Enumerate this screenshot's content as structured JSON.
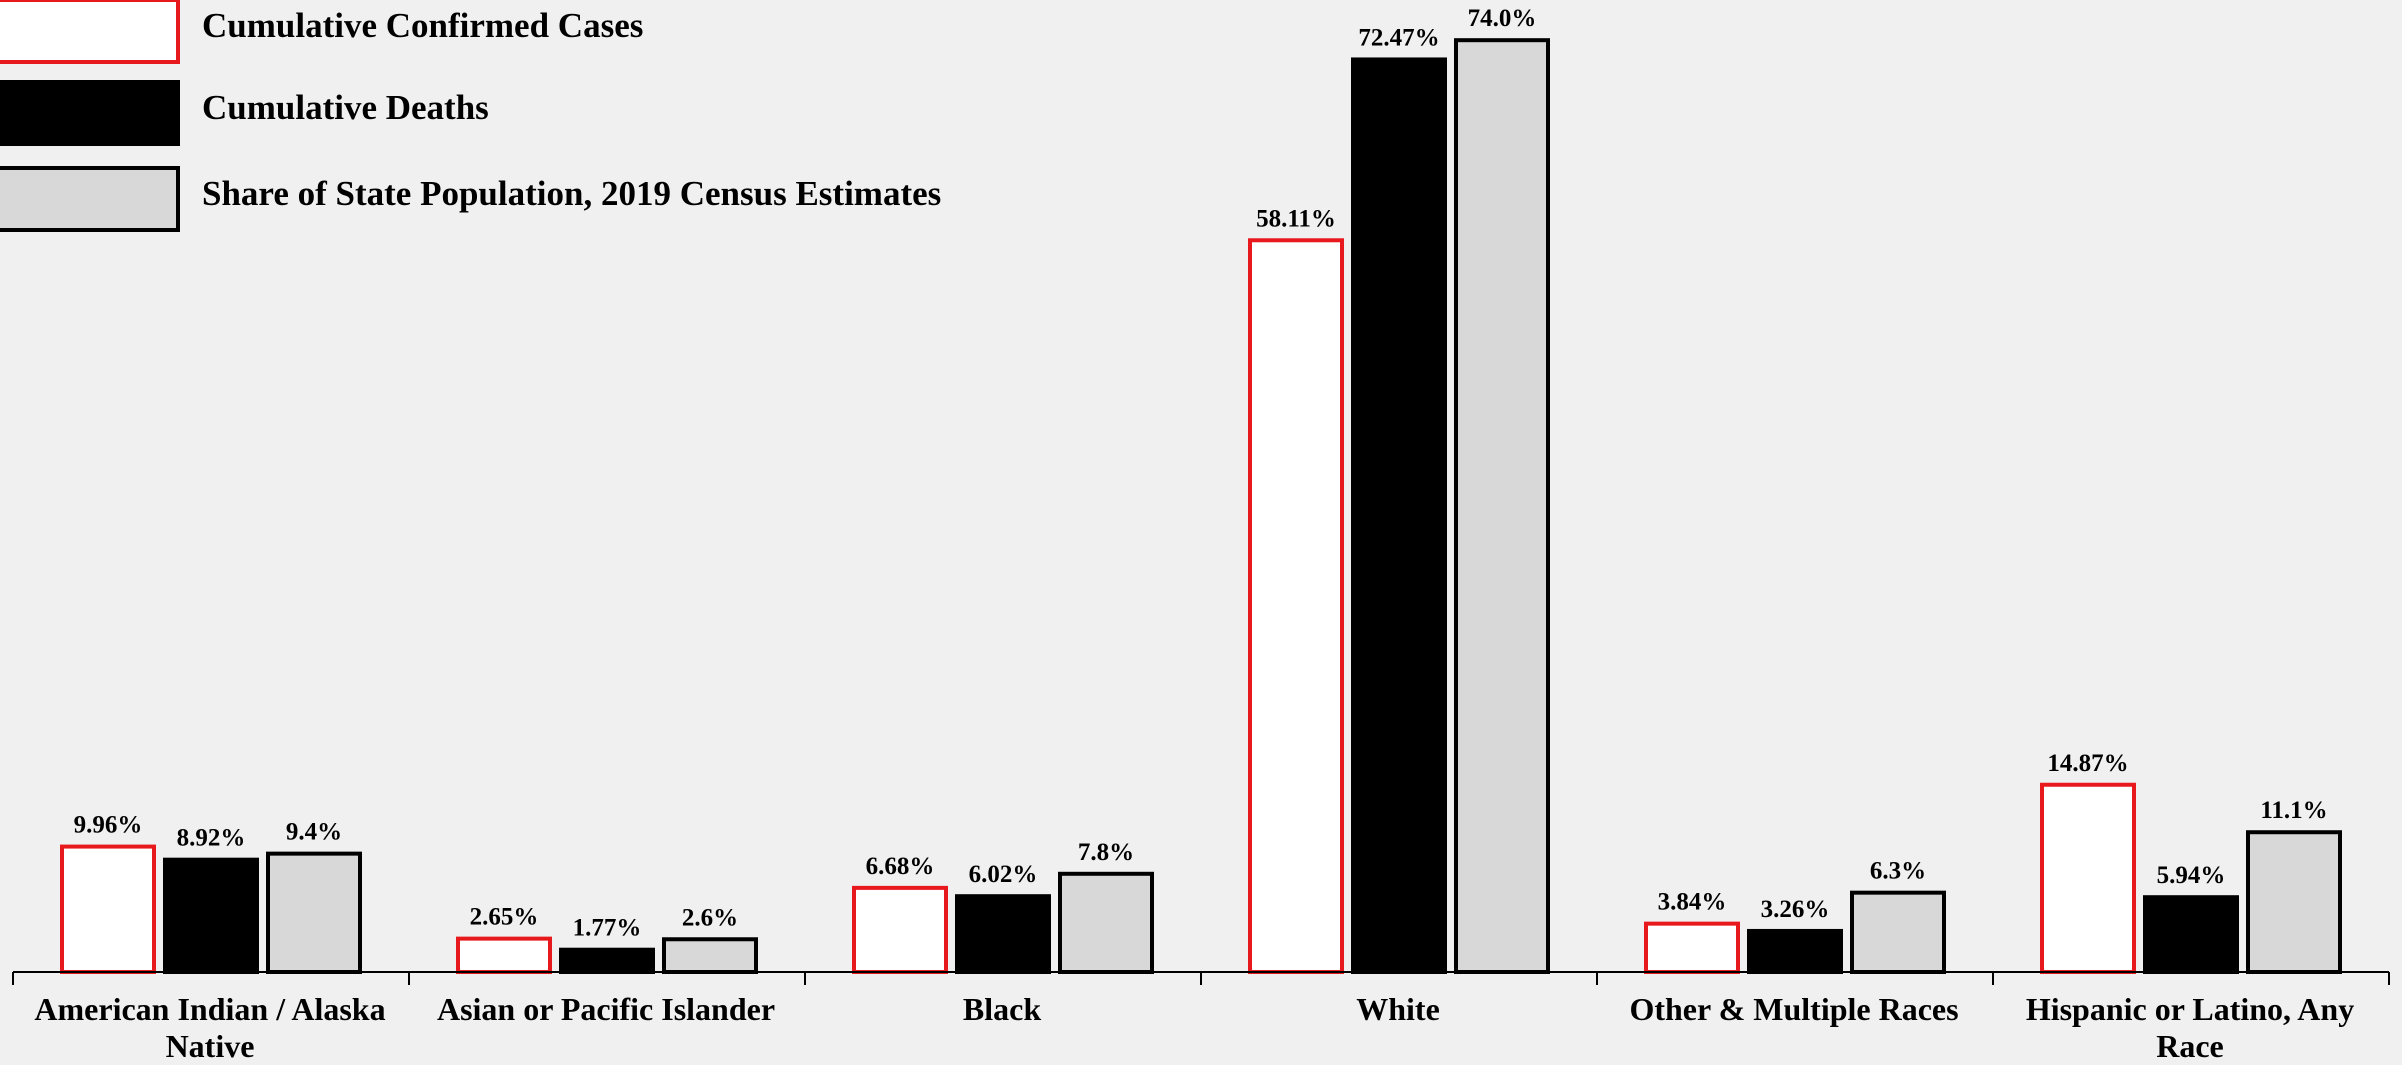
{
  "chart_data": {
    "type": "bar",
    "categories": [
      "American Indian / Alaska Native",
      "Asian or Pacific Islander",
      "Black",
      "White",
      "Other & Multiple Races",
      "Hispanic or Latino, Any Race"
    ],
    "series": [
      {
        "name": "Cumulative Confirmed Cases",
        "values": [
          9.96,
          2.65,
          6.68,
          58.11,
          3.84,
          14.87
        ],
        "labels": [
          "9.96%",
          "2.65%",
          "6.68%",
          "58.11%",
          "3.84%",
          "14.87%"
        ],
        "fill": "#ffffff",
        "stroke": "#e8191c"
      },
      {
        "name": "Cumulative Deaths",
        "values": [
          8.92,
          1.77,
          6.02,
          72.47,
          3.26,
          5.94
        ],
        "labels": [
          "8.92%",
          "1.77%",
          "6.02%",
          "72.47%",
          "3.26%",
          "5.94%"
        ],
        "fill": "#000000",
        "stroke": "#000000"
      },
      {
        "name": "Share of State Population, 2019 Census Estimates",
        "values": [
          9.4,
          2.6,
          7.8,
          74.0,
          6.3,
          11.1
        ],
        "labels": [
          "9.4%",
          "2.6%",
          "7.8%",
          "74.0%",
          "6.3%",
          "11.1%"
        ],
        "fill": "#d8d8d8",
        "stroke": "#000000"
      }
    ],
    "ylim": [
      0,
      76
    ],
    "legend": "top-left",
    "grid": false,
    "title": "",
    "xlabel": "",
    "ylabel": ""
  }
}
